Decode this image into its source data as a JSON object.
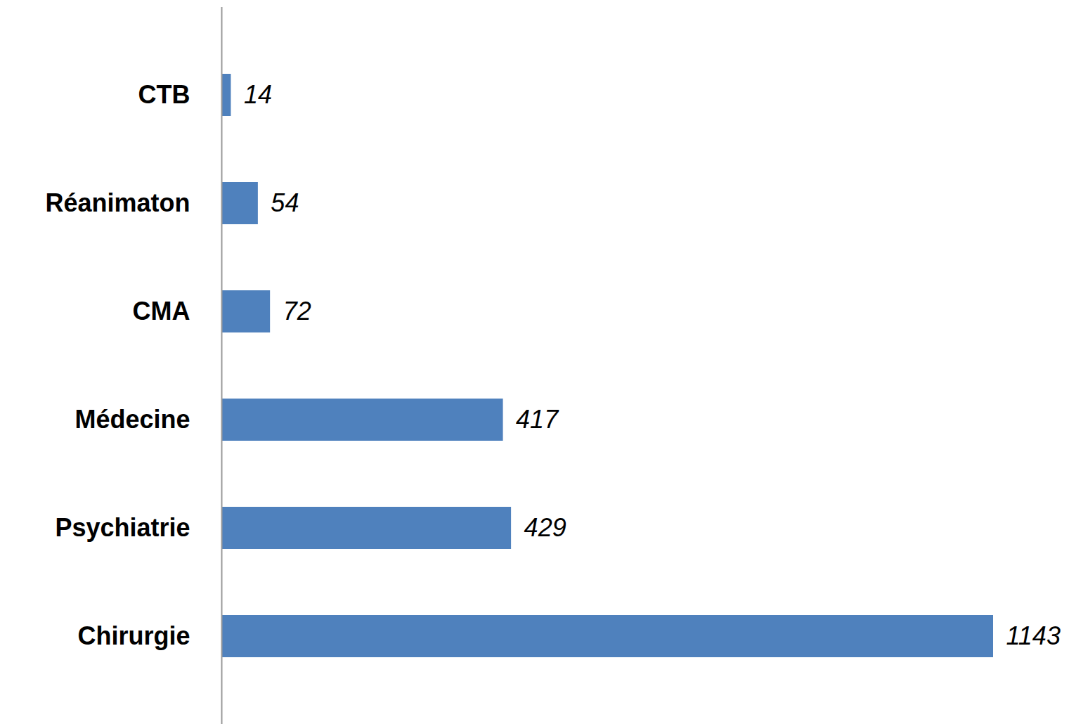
{
  "chart_data": {
    "type": "bar",
    "orientation": "horizontal",
    "categories": [
      "CTB",
      "Réanimaton",
      "CMA",
      "Médecine",
      "Psychiatrie",
      "Chirurgie"
    ],
    "values": [
      14,
      54,
      72,
      417,
      429,
      1143
    ],
    "color": "#4f81bd",
    "data_labels": true,
    "tick_labels": "y",
    "grid": false
  }
}
